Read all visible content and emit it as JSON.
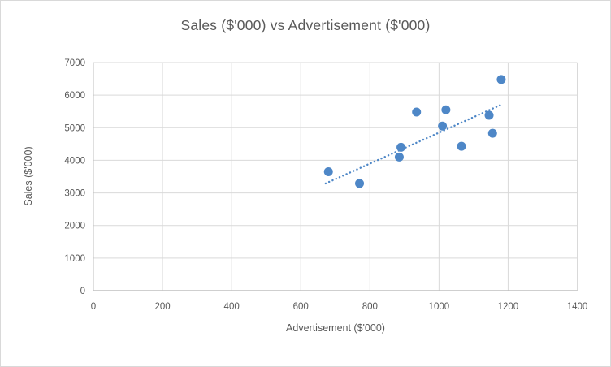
{
  "chart_data": {
    "type": "scatter",
    "title": "Sales ($'000) vs Advertisement ($'000)",
    "xlabel": "Advertisement ($'000)",
    "ylabel": "Sales ($'000)",
    "xlim": [
      0,
      1400
    ],
    "ylim": [
      0,
      7000
    ],
    "xticks": [
      0,
      200,
      400,
      600,
      800,
      1000,
      1200,
      1400
    ],
    "yticks": [
      0,
      1000,
      2000,
      3000,
      4000,
      5000,
      6000,
      7000
    ],
    "grid": true,
    "legend": false,
    "points": [
      {
        "x": 680,
        "y": 3650
      },
      {
        "x": 770,
        "y": 3290
      },
      {
        "x": 885,
        "y": 4100
      },
      {
        "x": 890,
        "y": 4400
      },
      {
        "x": 935,
        "y": 5480
      },
      {
        "x": 1010,
        "y": 5050
      },
      {
        "x": 1020,
        "y": 5550
      },
      {
        "x": 1065,
        "y": 4430
      },
      {
        "x": 1145,
        "y": 5380
      },
      {
        "x": 1155,
        "y": 4830
      },
      {
        "x": 1180,
        "y": 6480
      }
    ],
    "trendline": {
      "style": "dotted",
      "x1": 672,
      "y1": 3290,
      "x2": 1179,
      "y2": 5700
    },
    "colors": {
      "marker": "#4E87C7",
      "trendline": "#4E87C7",
      "gridline": "#D9D9D9",
      "axis_line": "#BFBFBF",
      "text": "#595959",
      "background": "#FFFFFF",
      "border": "#D9D9D9"
    }
  }
}
